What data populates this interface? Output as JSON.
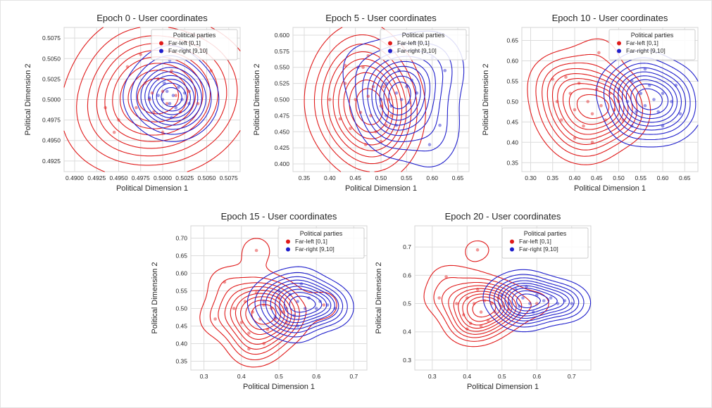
{
  "figure": {
    "background": "#ffffff",
    "grid_color": "#dcdcdc",
    "axes_border_color": "#d4d4d4",
    "text_color": "#262626",
    "marker_alpha": 0.45
  },
  "legend": {
    "title": "Political parties",
    "entries": [
      {
        "label": "Far-left [0,1]",
        "color": "#e01a1a"
      },
      {
        "label": "Far-right [9,10]",
        "color": "#1f1fcc"
      }
    ],
    "position": "upper right"
  },
  "chart_data": [
    {
      "type": "scatter",
      "subtype": "kde-contour-scatter",
      "title": "Epoch 0 - User coordinates",
      "xlabel": "Political Dimension 1",
      "ylabel": "Political Dimension 2",
      "xlim": [
        0.4888,
        0.5088
      ],
      "ylim": [
        0.4912,
        0.5088
      ],
      "xticks": [
        0.49,
        0.4925,
        0.495,
        0.4975,
        0.5,
        0.5025,
        0.505,
        0.5075
      ],
      "xtick_labels": [
        "0.4900",
        "0.4925",
        "0.4950",
        "0.4975",
        "0.5000",
        "0.5025",
        "0.5050",
        "0.5075"
      ],
      "yticks": [
        0.4925,
        0.495,
        0.4975,
        0.5,
        0.5025,
        0.505,
        0.5075
      ],
      "ytick_labels": [
        "0.4925",
        "0.4950",
        "0.4975",
        "0.5000",
        "0.5025",
        "0.5050",
        "0.5075"
      ],
      "grid": true,
      "levels": 9,
      "series": [
        {
          "name": "Far-left [0,1]",
          "color": "#e01a1a",
          "bandwidth": 0.004,
          "points": [
            [
              0.4935,
              0.499
            ],
            [
              0.495,
              0.4975
            ],
            [
              0.4945,
              0.496
            ],
            [
              0.496,
              0.504
            ],
            [
              0.4975,
              0.5055
            ],
            [
              0.498,
              0.502
            ],
            [
              0.4985,
              0.5
            ],
            [
              0.499,
              0.4985
            ],
            [
              0.4995,
              0.5025
            ],
            [
              0.5,
              0.501
            ],
            [
              0.5005,
              0.4995
            ],
            [
              0.501,
              0.5035
            ],
            [
              0.5015,
              0.5005
            ],
            [
              0.502,
              0.4985
            ],
            [
              0.503,
              0.501
            ],
            [
              0.504,
              0.4995
            ],
            [
              0.5055,
              0.5035
            ],
            [
              0.497,
              0.499
            ],
            [
              0.5,
              0.496
            ],
            [
              0.4988,
              0.5008
            ]
          ]
        },
        {
          "name": "Far-right [9,10]",
          "color": "#1f1fcc",
          "bandwidth": 0.0022,
          "points": [
            [
              0.4995,
              0.5005
            ],
            [
              0.5,
              0.5
            ],
            [
              0.5005,
              0.501
            ],
            [
              0.5008,
              0.4995
            ],
            [
              0.5012,
              0.5005
            ],
            [
              0.5015,
              0.499
            ],
            [
              0.5018,
              0.5015
            ],
            [
              0.5022,
              0.5
            ],
            [
              0.5025,
              0.5008
            ],
            [
              0.501,
              0.4978
            ],
            [
              0.503,
              0.4995
            ],
            [
              0.4985,
              0.5002
            ],
            [
              0.5002,
              0.502
            ],
            [
              0.5008,
              0.5048
            ]
          ]
        }
      ]
    },
    {
      "type": "scatter",
      "subtype": "kde-contour-scatter",
      "title": "Epoch 5 - User coordinates",
      "xlabel": "Political Dimension 1",
      "ylabel": "Political Dimension 2",
      "xlim": [
        0.328,
        0.672
      ],
      "ylim": [
        0.388,
        0.612
      ],
      "xticks": [
        0.35,
        0.4,
        0.45,
        0.5,
        0.55,
        0.6,
        0.65
      ],
      "xtick_labels": [
        "0.35",
        "0.40",
        "0.45",
        "0.50",
        "0.55",
        "0.60",
        "0.65"
      ],
      "yticks": [
        0.4,
        0.425,
        0.45,
        0.475,
        0.5,
        0.525,
        0.55,
        0.575,
        0.6
      ],
      "ytick_labels": [
        "0.400",
        "0.425",
        "0.450",
        "0.475",
        "0.500",
        "0.525",
        "0.550",
        "0.575",
        "0.600"
      ],
      "grid": true,
      "levels": 9,
      "series": [
        {
          "name": "Far-left [0,1]",
          "color": "#e01a1a",
          "bandwidth": 0.042,
          "points": [
            [
              0.4,
              0.5
            ],
            [
              0.42,
              0.47
            ],
            [
              0.43,
              0.525
            ],
            [
              0.44,
              0.455
            ],
            [
              0.45,
              0.5
            ],
            [
              0.46,
              0.48
            ],
            [
              0.465,
              0.55
            ],
            [
              0.47,
              0.43
            ],
            [
              0.475,
              0.505
            ],
            [
              0.48,
              0.475
            ],
            [
              0.485,
              0.52
            ],
            [
              0.49,
              0.45
            ],
            [
              0.5,
              0.49
            ],
            [
              0.505,
              0.52
            ],
            [
              0.51,
              0.46
            ],
            [
              0.515,
              0.5
            ],
            [
              0.52,
              0.475
            ],
            [
              0.475,
              0.568
            ],
            [
              0.43,
              0.553
            ],
            [
              0.5,
              0.435
            ]
          ]
        },
        {
          "name": "Far-right [9,10]",
          "color": "#1f1fcc",
          "bandwidth": 0.036,
          "points": [
            [
              0.5,
              0.5
            ],
            [
              0.51,
              0.525
            ],
            [
              0.52,
              0.49
            ],
            [
              0.53,
              0.51
            ],
            [
              0.535,
              0.545
            ],
            [
              0.54,
              0.5
            ],
            [
              0.55,
              0.52
            ],
            [
              0.555,
              0.495
            ],
            [
              0.56,
              0.53
            ],
            [
              0.57,
              0.51
            ],
            [
              0.51,
              0.475
            ],
            [
              0.455,
              0.55
            ],
            [
              0.6,
              0.565
            ],
            [
              0.625,
              0.545
            ],
            [
              0.615,
              0.46
            ],
            [
              0.595,
              0.43
            ],
            [
              0.53,
              0.46
            ]
          ]
        }
      ]
    },
    {
      "type": "scatter",
      "subtype": "kde-contour-scatter",
      "title": "Epoch 10 - User coordinates",
      "xlabel": "Political Dimension 1",
      "ylabel": "Political Dimension 2",
      "xlim": [
        0.28,
        0.68
      ],
      "ylim": [
        0.328,
        0.682
      ],
      "xticks": [
        0.3,
        0.35,
        0.4,
        0.45,
        0.5,
        0.55,
        0.6,
        0.65
      ],
      "xtick_labels": [
        "0.30",
        "0.35",
        "0.40",
        "0.45",
        "0.50",
        "0.55",
        "0.60",
        "0.65"
      ],
      "yticks": [
        0.35,
        0.4,
        0.45,
        0.5,
        0.55,
        0.6,
        0.65
      ],
      "ytick_labels": [
        "0.35",
        "0.40",
        "0.45",
        "0.50",
        "0.55",
        "0.60",
        "0.65"
      ],
      "grid": true,
      "levels": 9,
      "series": [
        {
          "name": "Far-left [0,1]",
          "color": "#e01a1a",
          "bandwidth": 0.042,
          "points": [
            [
              0.455,
              0.62
            ],
            [
              0.35,
              0.555
            ],
            [
              0.38,
              0.56
            ],
            [
              0.36,
              0.5
            ],
            [
              0.37,
              0.455
            ],
            [
              0.39,
              0.52
            ],
            [
              0.4,
              0.48
            ],
            [
              0.41,
              0.545
            ],
            [
              0.42,
              0.44
            ],
            [
              0.43,
              0.5
            ],
            [
              0.44,
              0.47
            ],
            [
              0.45,
              0.53
            ],
            [
              0.46,
              0.49
            ],
            [
              0.47,
              0.455
            ],
            [
              0.48,
              0.52
            ],
            [
              0.49,
              0.48
            ],
            [
              0.5,
              0.5
            ],
            [
              0.4,
              0.41
            ],
            [
              0.44,
              0.4
            ],
            [
              0.51,
              0.455
            ]
          ]
        },
        {
          "name": "Far-right [9,10]",
          "color": "#1f1fcc",
          "bandwidth": 0.038,
          "points": [
            [
              0.5,
              0.53
            ],
            [
              0.52,
              0.5
            ],
            [
              0.53,
              0.55
            ],
            [
              0.54,
              0.475
            ],
            [
              0.55,
              0.52
            ],
            [
              0.56,
              0.49
            ],
            [
              0.57,
              0.54
            ],
            [
              0.58,
              0.505
            ],
            [
              0.59,
              0.475
            ],
            [
              0.6,
              0.52
            ],
            [
              0.62,
              0.5
            ],
            [
              0.63,
              0.54
            ],
            [
              0.56,
              0.58
            ],
            [
              0.53,
              0.44
            ],
            [
              0.6,
              0.44
            ],
            [
              0.64,
              0.47
            ]
          ]
        }
      ]
    },
    {
      "type": "scatter",
      "subtype": "kde-contour-scatter",
      "title": "Epoch 15 - User coordinates",
      "xlabel": "Political Dimension 1",
      "ylabel": "Political Dimension 2",
      "xlim": [
        0.265,
        0.735
      ],
      "ylim": [
        0.325,
        0.735
      ],
      "xticks": [
        0.3,
        0.4,
        0.5,
        0.6,
        0.7
      ],
      "xtick_labels": [
        "0.3",
        "0.4",
        "0.5",
        "0.6",
        "0.7"
      ],
      "yticks": [
        0.35,
        0.4,
        0.45,
        0.5,
        0.55,
        0.6,
        0.65,
        0.7
      ],
      "ytick_labels": [
        "0.35",
        "0.40",
        "0.45",
        "0.50",
        "0.55",
        "0.60",
        "0.65",
        "0.70"
      ],
      "grid": true,
      "levels": 9,
      "series": [
        {
          "name": "Far-left [0,1]",
          "color": "#e01a1a",
          "bandwidth": 0.04,
          "points": [
            [
              0.44,
              0.665
            ],
            [
              0.355,
              0.575
            ],
            [
              0.33,
              0.47
            ],
            [
              0.38,
              0.5
            ],
            [
              0.4,
              0.46
            ],
            [
              0.41,
              0.52
            ],
            [
              0.42,
              0.43
            ],
            [
              0.43,
              0.49
            ],
            [
              0.44,
              0.545
            ],
            [
              0.45,
              0.47
            ],
            [
              0.46,
              0.51
            ],
            [
              0.47,
              0.44
            ],
            [
              0.48,
              0.5
            ],
            [
              0.49,
              0.47
            ],
            [
              0.5,
              0.53
            ],
            [
              0.51,
              0.49
            ],
            [
              0.46,
              0.4
            ],
            [
              0.42,
              0.385
            ],
            [
              0.52,
              0.46
            ],
            [
              0.62,
              0.51
            ]
          ]
        },
        {
          "name": "Far-right [9,10]",
          "color": "#1f1fcc",
          "bandwidth": 0.036,
          "points": [
            [
              0.46,
              0.52
            ],
            [
              0.5,
              0.55
            ],
            [
              0.52,
              0.5
            ],
            [
              0.53,
              0.54
            ],
            [
              0.54,
              0.48
            ],
            [
              0.55,
              0.52
            ],
            [
              0.56,
              0.57
            ],
            [
              0.57,
              0.5
            ],
            [
              0.58,
              0.53
            ],
            [
              0.6,
              0.5
            ],
            [
              0.61,
              0.52
            ],
            [
              0.63,
              0.51
            ],
            [
              0.55,
              0.45
            ],
            [
              0.49,
              0.475
            ],
            [
              0.65,
              0.5
            ]
          ]
        }
      ]
    },
    {
      "type": "scatter",
      "subtype": "kde-contour-scatter",
      "title": "Epoch 20 - User coordinates",
      "xlabel": "Political Dimension 1",
      "ylabel": "Political Dimension 2",
      "xlim": [
        0.25,
        0.755
      ],
      "ylim": [
        0.265,
        0.775
      ],
      "xticks": [
        0.3,
        0.4,
        0.5,
        0.6,
        0.7
      ],
      "xtick_labels": [
        "0.3",
        "0.4",
        "0.5",
        "0.6",
        "0.7"
      ],
      "yticks": [
        0.3,
        0.4,
        0.5,
        0.6,
        0.7
      ],
      "ytick_labels": [
        "0.3",
        "0.4",
        "0.5",
        "0.6",
        "0.7"
      ],
      "grid": true,
      "levels": 9,
      "series": [
        {
          "name": "Far-left [0,1]",
          "color": "#e01a1a",
          "bandwidth": 0.042,
          "points": [
            [
              0.43,
              0.69
            ],
            [
              0.34,
              0.595
            ],
            [
              0.32,
              0.52
            ],
            [
              0.37,
              0.5
            ],
            [
              0.39,
              0.46
            ],
            [
              0.4,
              0.52
            ],
            [
              0.41,
              0.43
            ],
            [
              0.42,
              0.5
            ],
            [
              0.43,
              0.55
            ],
            [
              0.44,
              0.47
            ],
            [
              0.45,
              0.51
            ],
            [
              0.46,
              0.44
            ],
            [
              0.47,
              0.5
            ],
            [
              0.48,
              0.47
            ],
            [
              0.49,
              0.52
            ],
            [
              0.5,
              0.49
            ],
            [
              0.44,
              0.42
            ],
            [
              0.4,
              0.41
            ],
            [
              0.52,
              0.48
            ],
            [
              0.6,
              0.5
            ]
          ]
        },
        {
          "name": "Far-right [9,10]",
          "color": "#1f1fcc",
          "bandwidth": 0.04,
          "points": [
            [
              0.5,
              0.53
            ],
            [
              0.52,
              0.5
            ],
            [
              0.54,
              0.55
            ],
            [
              0.55,
              0.49
            ],
            [
              0.56,
              0.52
            ],
            [
              0.57,
              0.56
            ],
            [
              0.58,
              0.5
            ],
            [
              0.6,
              0.53
            ],
            [
              0.62,
              0.51
            ],
            [
              0.64,
              0.52
            ],
            [
              0.66,
              0.5
            ],
            [
              0.68,
              0.51
            ],
            [
              0.55,
              0.46
            ],
            [
              0.59,
              0.47
            ],
            [
              0.7,
              0.5
            ]
          ]
        }
      ]
    }
  ]
}
